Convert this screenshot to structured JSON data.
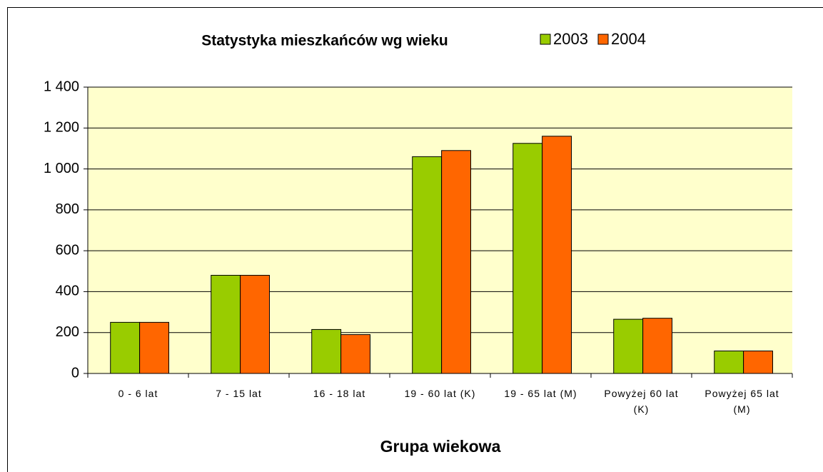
{
  "chart_data": {
    "type": "bar",
    "title": "Statystyka mieszkańców wg wieku",
    "x_label": "Grupa wiekowa",
    "categories": [
      "0 - 6 lat",
      "7 - 15 lat",
      "16 - 18 lat",
      "19 - 60 lat (K)",
      "19 - 65 lat (M)",
      "Powyżej 60 lat (K)",
      "Powyżej 65 lat (M)"
    ],
    "series": [
      {
        "name": "2003",
        "color": "#99cc00",
        "values": [
          250,
          480,
          215,
          1060,
          1125,
          265,
          110
        ]
      },
      {
        "name": "2004",
        "color": "#ff6600",
        "values": [
          250,
          480,
          190,
          1090,
          1160,
          270,
          110
        ]
      }
    ],
    "ylim": [
      0,
      1400
    ],
    "yticks": [
      0,
      200,
      400,
      600,
      800,
      {
        "value": 1000,
        "label": "1 000"
      },
      {
        "value": 1200,
        "label": "1 200"
      },
      {
        "value": 1400,
        "label": "1 400"
      }
    ],
    "grid": true,
    "legend": "top"
  }
}
